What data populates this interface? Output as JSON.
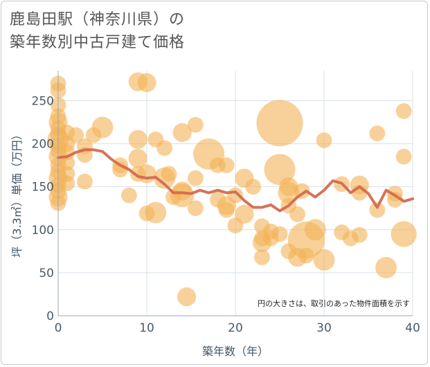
{
  "title_line1": "鹿島田駅（神奈川県）の",
  "title_line2": "築年数別中古戸建て価格",
  "chart_data": {
    "type": "scatter",
    "xlabel": "築年数（年）",
    "ylabel": "坪（3.3㎡）単価（万円）",
    "xlim": [
      0,
      40
    ],
    "ylim": [
      0,
      285
    ],
    "xticks": [
      "0",
      "10",
      "20",
      "30",
      "40"
    ],
    "yticks": [
      "0",
      "50",
      "100",
      "150",
      "200",
      "250"
    ],
    "grid": true,
    "note": "円の大きさは、取引のあった物件面積を示す",
    "colors": {
      "bubble": "#f3b256",
      "line": "#d46a50",
      "grid": "#d8e0e6"
    },
    "points": [
      {
        "x": 0,
        "y": 270,
        "s": 2
      },
      {
        "x": 0,
        "y": 262,
        "s": 2
      },
      {
        "x": 0,
        "y": 245,
        "s": 2
      },
      {
        "x": 0,
        "y": 232,
        "s": 2
      },
      {
        "x": 0,
        "y": 225,
        "s": 3
      },
      {
        "x": 0,
        "y": 218,
        "s": 2
      },
      {
        "x": 0,
        "y": 211,
        "s": 2
      },
      {
        "x": 0,
        "y": 205,
        "s": 4
      },
      {
        "x": 0,
        "y": 198,
        "s": 2
      },
      {
        "x": 0,
        "y": 192,
        "s": 2
      },
      {
        "x": 0,
        "y": 185,
        "s": 3
      },
      {
        "x": 0,
        "y": 175,
        "s": 2
      },
      {
        "x": 0,
        "y": 168,
        "s": 2
      },
      {
        "x": 0,
        "y": 160,
        "s": 3
      },
      {
        "x": 0,
        "y": 152,
        "s": 2
      },
      {
        "x": 0,
        "y": 145,
        "s": 2
      },
      {
        "x": 0,
        "y": 138,
        "s": 3
      },
      {
        "x": 0,
        "y": 131,
        "s": 2
      },
      {
        "x": 1,
        "y": 213,
        "s": 2
      },
      {
        "x": 1,
        "y": 200,
        "s": 2
      },
      {
        "x": 1,
        "y": 190,
        "s": 2
      },
      {
        "x": 1,
        "y": 178,
        "s": 2
      },
      {
        "x": 1,
        "y": 165,
        "s": 2
      },
      {
        "x": 1,
        "y": 154,
        "s": 2
      },
      {
        "x": 2,
        "y": 210,
        "s": 2
      },
      {
        "x": 3,
        "y": 197,
        "s": 2
      },
      {
        "x": 3,
        "y": 187,
        "s": 2
      },
      {
        "x": 3,
        "y": 156,
        "s": 2
      },
      {
        "x": 4,
        "y": 210,
        "s": 2
      },
      {
        "x": 5,
        "y": 219,
        "s": 4
      },
      {
        "x": 7,
        "y": 175,
        "s": 2
      },
      {
        "x": 7,
        "y": 170,
        "s": 2
      },
      {
        "x": 8,
        "y": 140,
        "s": 2
      },
      {
        "x": 9,
        "y": 272,
        "s": 3
      },
      {
        "x": 9,
        "y": 205,
        "s": 3
      },
      {
        "x": 9,
        "y": 183,
        "s": 3
      },
      {
        "x": 9,
        "y": 165,
        "s": 2
      },
      {
        "x": 10,
        "y": 271,
        "s": 3
      },
      {
        "x": 10,
        "y": 165,
        "s": 3
      },
      {
        "x": 10,
        "y": 119,
        "s": 2
      },
      {
        "x": 11,
        "y": 205,
        "s": 2
      },
      {
        "x": 11,
        "y": 120,
        "s": 4
      },
      {
        "x": 12,
        "y": 195,
        "s": 2
      },
      {
        "x": 12,
        "y": 160,
        "s": 4
      },
      {
        "x": 12.5,
        "y": 165,
        "s": 2
      },
      {
        "x": 13,
        "y": 138,
        "s": 2
      },
      {
        "x": 14,
        "y": 213,
        "s": 3
      },
      {
        "x": 14,
        "y": 145,
        "s": 3
      },
      {
        "x": 14,
        "y": 140,
        "s": 5
      },
      {
        "x": 14.5,
        "y": 22,
        "s": 3
      },
      {
        "x": 15.5,
        "y": 222,
        "s": 2
      },
      {
        "x": 15.5,
        "y": 160,
        "s": 2
      },
      {
        "x": 15.5,
        "y": 125,
        "s": 2
      },
      {
        "x": 17,
        "y": 188,
        "s": 9
      },
      {
        "x": 18,
        "y": 175,
        "s": 2
      },
      {
        "x": 18,
        "y": 135,
        "s": 2
      },
      {
        "x": 19,
        "y": 175,
        "s": 2
      },
      {
        "x": 19,
        "y": 128,
        "s": 3
      },
      {
        "x": 19,
        "y": 123,
        "s": 2
      },
      {
        "x": 20,
        "y": 140,
        "s": 2
      },
      {
        "x": 20,
        "y": 105,
        "s": 2
      },
      {
        "x": 21,
        "y": 160,
        "s": 3
      },
      {
        "x": 21,
        "y": 118,
        "s": 3
      },
      {
        "x": 22,
        "y": 150,
        "s": 2
      },
      {
        "x": 23,
        "y": 104,
        "s": 2
      },
      {
        "x": 23,
        "y": 90,
        "s": 2
      },
      {
        "x": 23,
        "y": 85,
        "s": 3
      },
      {
        "x": 23,
        "y": 68,
        "s": 2
      },
      {
        "x": 24,
        "y": 98,
        "s": 2
      },
      {
        "x": 24,
        "y": 90,
        "s": 2
      },
      {
        "x": 25,
        "y": 224,
        "s": 21
      },
      {
        "x": 25,
        "y": 170,
        "s": 9
      },
      {
        "x": 25,
        "y": 95,
        "s": 2
      },
      {
        "x": 26,
        "y": 150,
        "s": 3
      },
      {
        "x": 26,
        "y": 143,
        "s": 4
      },
      {
        "x": 26,
        "y": 128,
        "s": 2
      },
      {
        "x": 26,
        "y": 75,
        "s": 2
      },
      {
        "x": 27,
        "y": 118,
        "s": 2
      },
      {
        "x": 27,
        "y": 68,
        "s": 3
      },
      {
        "x": 27.5,
        "y": 145,
        "s": 2
      },
      {
        "x": 28,
        "y": 88,
        "s": 13
      },
      {
        "x": 28,
        "y": 70,
        "s": 2
      },
      {
        "x": 29,
        "y": 100,
        "s": 4
      },
      {
        "x": 30,
        "y": 204,
        "s": 2
      },
      {
        "x": 30,
        "y": 65,
        "s": 4
      },
      {
        "x": 32,
        "y": 153,
        "s": 2
      },
      {
        "x": 32,
        "y": 97,
        "s": 2
      },
      {
        "x": 33,
        "y": 90,
        "s": 2
      },
      {
        "x": 34,
        "y": 152,
        "s": 3
      },
      {
        "x": 34,
        "y": 143,
        "s": 2
      },
      {
        "x": 34,
        "y": 94,
        "s": 2
      },
      {
        "x": 36,
        "y": 212,
        "s": 2
      },
      {
        "x": 36,
        "y": 123,
        "s": 2
      },
      {
        "x": 37,
        "y": 56,
        "s": 4
      },
      {
        "x": 38,
        "y": 142,
        "s": 2
      },
      {
        "x": 38,
        "y": 135,
        "s": 2
      },
      {
        "x": 39,
        "y": 238,
        "s": 2
      },
      {
        "x": 39,
        "y": 185,
        "s": 2
      },
      {
        "x": 39,
        "y": 95,
        "s": 6
      }
    ],
    "trend": {
      "x": [
        0,
        1,
        2,
        3,
        4,
        5,
        6,
        7,
        8,
        9,
        10,
        11,
        12,
        13,
        14,
        15,
        16,
        17,
        18,
        19,
        20,
        21,
        22,
        23,
        24,
        25,
        26,
        27,
        28,
        29,
        30,
        31,
        32,
        33,
        34,
        35,
        36,
        37,
        38,
        39,
        40
      ],
      "y": [
        184,
        185,
        190,
        193,
        193,
        191,
        182,
        175,
        170,
        162,
        160,
        161,
        153,
        143,
        143,
        142,
        146,
        143,
        146,
        143,
        144,
        134,
        126,
        126,
        129,
        122,
        128,
        138,
        145,
        138,
        146,
        157,
        154,
        143,
        150,
        142,
        126,
        146,
        140,
        133,
        136
      ]
    }
  }
}
